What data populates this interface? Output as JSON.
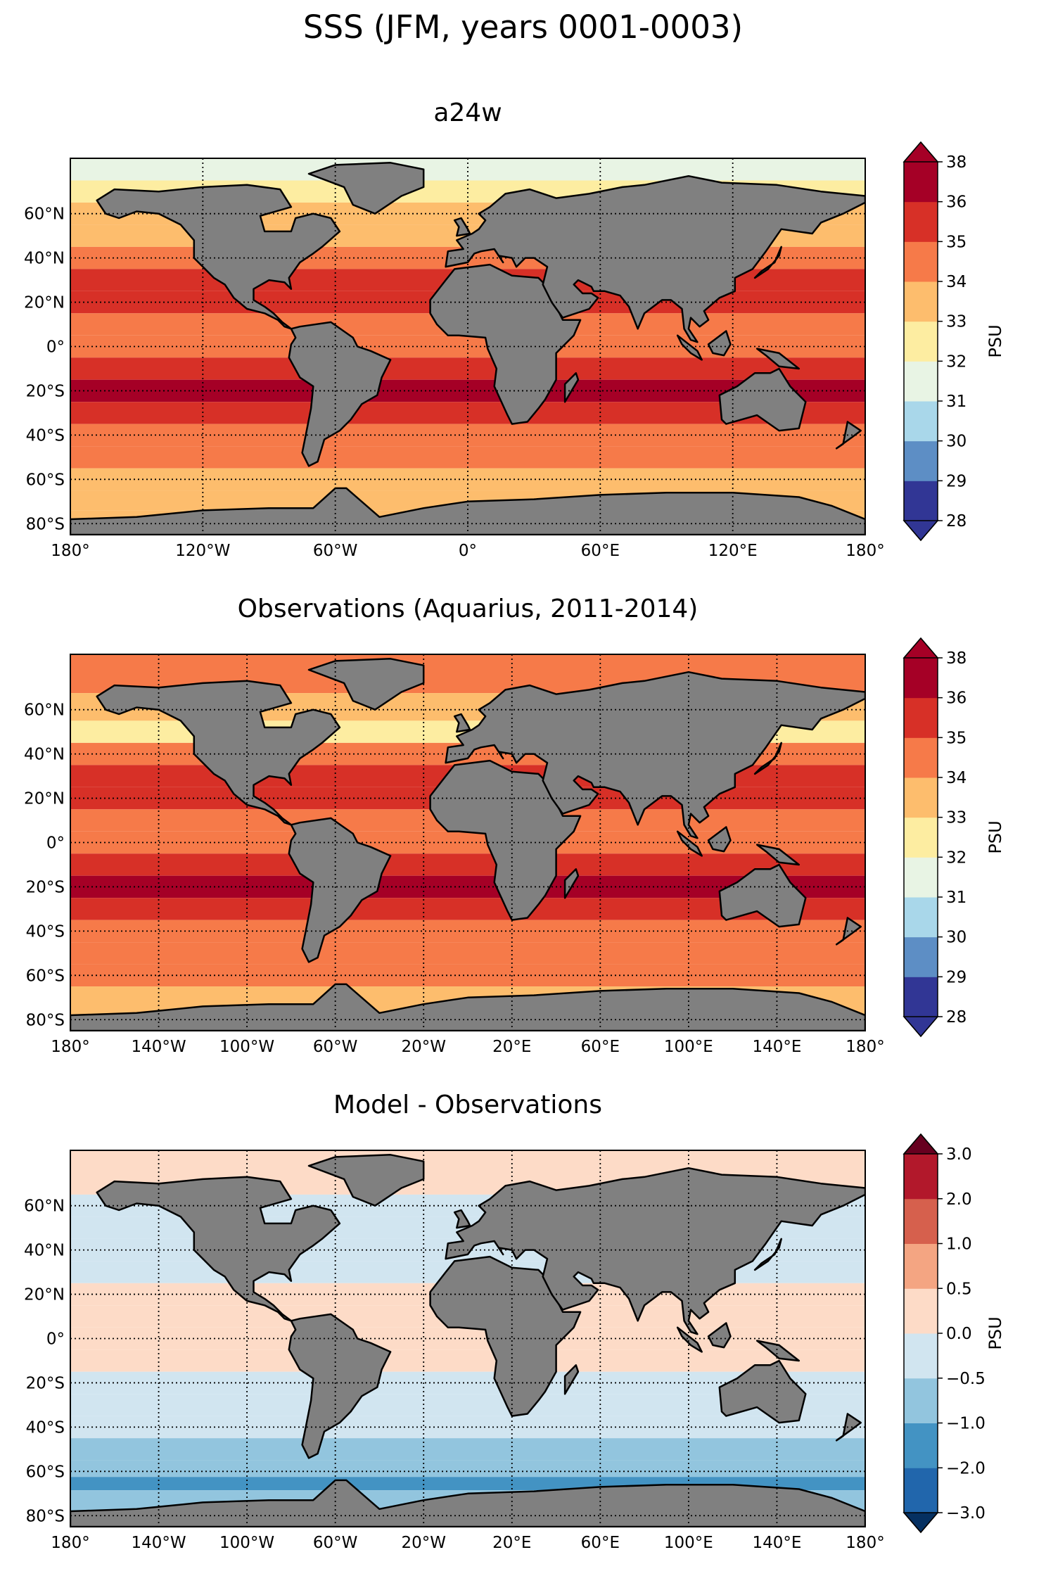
{
  "suptitle": "SSS (JFM, years 0001-0003)",
  "land_color": "#808080",
  "missing_color": "#ffffff",
  "chart_data": [
    {
      "type": "heatmap",
      "title": "a24w",
      "xlim": [
        -180,
        180
      ],
      "ylim": [
        -85,
        85
      ],
      "x_ticks": [
        -180,
        -120,
        -60,
        0,
        60,
        120,
        180
      ],
      "x_tick_labels": [
        "180°",
        "120°W",
        "60°W",
        "0°",
        "60°E",
        "120°E",
        "180°"
      ],
      "y_ticks": [
        60,
        40,
        20,
        0,
        -20,
        -40,
        -60,
        -80
      ],
      "y_tick_labels": [
        "60°N",
        "40°N",
        "20°N",
        "0°",
        "20°S",
        "40°S",
        "60°S",
        "80°S"
      ],
      "grid": true,
      "colorbar": {
        "label": "PSU",
        "levels": [
          28,
          29,
          30,
          31,
          32,
          33,
          34,
          35,
          36,
          38
        ],
        "tick_labels": [
          "28",
          "29",
          "30",
          "31",
          "32",
          "33",
          "34",
          "35",
          "36",
          "38"
        ],
        "colors": [
          "#313695",
          "#5d8ec5",
          "#a9d7ea",
          "#e8f4e4",
          "#fdeda1",
          "#fdbd6d",
          "#f67a49",
          "#d73027",
          "#a50026"
        ],
        "extend": "both",
        "under_color": "#313695",
        "over_color": "#a50026"
      },
      "zonal_mean_psu": [
        {
          "lat": 80,
          "value": 31.5
        },
        {
          "lat": 70,
          "value": 32.5
        },
        {
          "lat": 60,
          "value": 33.5
        },
        {
          "lat": 50,
          "value": 33.0
        },
        {
          "lat": 40,
          "value": 34.5
        },
        {
          "lat": 30,
          "value": 35.2
        },
        {
          "lat": 20,
          "value": 35.5
        },
        {
          "lat": 10,
          "value": 34.5
        },
        {
          "lat": 0,
          "value": 34.8
        },
        {
          "lat": -10,
          "value": 35.5
        },
        {
          "lat": -20,
          "value": 36.0
        },
        {
          "lat": -30,
          "value": 35.3
        },
        {
          "lat": -40,
          "value": 34.7
        },
        {
          "lat": -50,
          "value": 34.3
        },
        {
          "lat": -60,
          "value": 33.5
        },
        {
          "lat": -70,
          "value": 33.3
        },
        {
          "lat": -78,
          "value": 33.3
        }
      ]
    },
    {
      "type": "heatmap",
      "title": "Observations (Aquarius, 2011-2014)",
      "xlim": [
        -180,
        180
      ],
      "ylim": [
        -85,
        85
      ],
      "x_ticks": [
        -180,
        -140,
        -100,
        -60,
        -20,
        20,
        60,
        100,
        140,
        180
      ],
      "x_tick_labels": [
        "180°",
        "140°W",
        "100°W",
        "60°W",
        "20°W",
        "20°E",
        "60°E",
        "100°E",
        "140°E",
        "180°"
      ],
      "y_ticks": [
        60,
        40,
        20,
        0,
        -20,
        -40,
        -60,
        -80
      ],
      "y_tick_labels": [
        "60°N",
        "40°N",
        "20°N",
        "0°",
        "20°S",
        "40°S",
        "60°S",
        "80°S"
      ],
      "grid": true,
      "colorbar": {
        "label": "PSU",
        "levels": [
          28,
          29,
          30,
          31,
          32,
          33,
          34,
          35,
          36,
          38
        ],
        "tick_labels": [
          "28",
          "29",
          "30",
          "31",
          "32",
          "33",
          "34",
          "35",
          "36",
          "38"
        ],
        "colors": [
          "#313695",
          "#5d8ec5",
          "#a9d7ea",
          "#e8f4e4",
          "#fdeda1",
          "#fdbd6d",
          "#f67a49",
          "#d73027",
          "#a50026"
        ],
        "extend": "both",
        "under_color": "#313695",
        "over_color": "#a50026"
      },
      "zonal_mean_psu": [
        {
          "lat": 75,
          "value": 34.3
        },
        {
          "lat": 60,
          "value": 33.5
        },
        {
          "lat": 50,
          "value": 32.8
        },
        {
          "lat": 40,
          "value": 34.3
        },
        {
          "lat": 30,
          "value": 35.5
        },
        {
          "lat": 20,
          "value": 35.3
        },
        {
          "lat": 10,
          "value": 34.2
        },
        {
          "lat": 0,
          "value": 34.6
        },
        {
          "lat": -10,
          "value": 35.3
        },
        {
          "lat": -20,
          "value": 36.0
        },
        {
          "lat": -30,
          "value": 35.5
        },
        {
          "lat": -40,
          "value": 34.8
        },
        {
          "lat": -50,
          "value": 34.3
        },
        {
          "lat": -60,
          "value": 34.0
        },
        {
          "lat": -70,
          "value": 33.5
        }
      ]
    },
    {
      "type": "heatmap",
      "title": "Model - Observations",
      "xlim": [
        -180,
        180
      ],
      "ylim": [
        -85,
        85
      ],
      "x_ticks": [
        -180,
        -140,
        -100,
        -60,
        -20,
        20,
        60,
        100,
        140,
        180
      ],
      "x_tick_labels": [
        "180°",
        "140°W",
        "100°W",
        "60°W",
        "20°W",
        "20°E",
        "60°E",
        "100°E",
        "140°E",
        "180°"
      ],
      "y_ticks": [
        60,
        40,
        20,
        0,
        -20,
        -40,
        -60,
        -80
      ],
      "y_tick_labels": [
        "60°N",
        "40°N",
        "20°N",
        "0°",
        "20°S",
        "40°S",
        "60°S",
        "80°S"
      ],
      "grid": true,
      "colorbar": {
        "label": "PSU",
        "levels": [
          -3.0,
          -2.0,
          -1.0,
          -0.5,
          0.0,
          0.5,
          1.0,
          2.0,
          3.0
        ],
        "tick_labels": [
          "−3.0",
          "−2.0",
          "−1.0",
          "−0.5",
          "0.0",
          "0.5",
          "1.0",
          "2.0",
          "3.0"
        ],
        "colors": [
          "#2166ac",
          "#4393c3",
          "#92c5de",
          "#d1e5f0",
          "#fddbc7",
          "#f4a582",
          "#d6604d",
          "#b2182b"
        ],
        "extend": "both",
        "under_color": "#053061",
        "over_color": "#67001f"
      },
      "zonal_mean_psu": [
        {
          "lat": 70,
          "value": 0.3
        },
        {
          "lat": 60,
          "value": -0.2
        },
        {
          "lat": 50,
          "value": -0.2
        },
        {
          "lat": 40,
          "value": -0.4
        },
        {
          "lat": 30,
          "value": -0.2
        },
        {
          "lat": 20,
          "value": 0.1
        },
        {
          "lat": 10,
          "value": 0.2
        },
        {
          "lat": 0,
          "value": 0.2
        },
        {
          "lat": -10,
          "value": 0.2
        },
        {
          "lat": -20,
          "value": -0.2
        },
        {
          "lat": -30,
          "value": -0.2
        },
        {
          "lat": -40,
          "value": -0.2
        },
        {
          "lat": -50,
          "value": -0.6
        },
        {
          "lat": -60,
          "value": -0.8
        },
        {
          "lat": -65,
          "value": -1.5
        },
        {
          "lat": -72,
          "value": -1.0
        }
      ]
    }
  ]
}
